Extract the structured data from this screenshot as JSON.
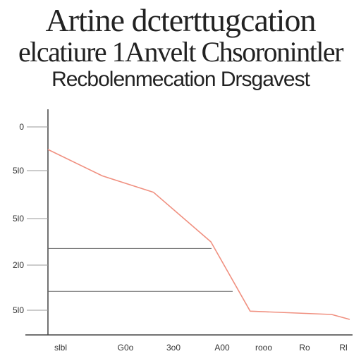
{
  "title_lines": [
    "Artine dcterttugcation",
    "elcatiure 1Anvelt Chsoronintler",
    "Recbolenmecation Drsgavest"
  ],
  "colors": {
    "line": "#f09080",
    "axis": "#444444",
    "ref_line": "#666666"
  },
  "chart_data": {
    "type": "line",
    "title": "",
    "xlabel": "",
    "ylabel": "",
    "y_tick_labels": [
      "0",
      "5l0",
      "5l0",
      "2l0",
      "5l0"
    ],
    "x_tick_labels": [
      "slbl",
      "G0o",
      "3o0",
      "A00",
      "rooo",
      "Ro",
      "Rl"
    ],
    "grid": false,
    "xlim": [
      0,
      100
    ],
    "ylim": [
      0,
      100
    ],
    "series": [
      {
        "x": [
          0,
          18,
          35,
          54,
          67,
          94,
          100
        ],
        "y": [
          100,
          84,
          74,
          44,
          2,
          0,
          -3
        ]
      }
    ],
    "reference_lines_y": [
      40,
      14
    ]
  }
}
